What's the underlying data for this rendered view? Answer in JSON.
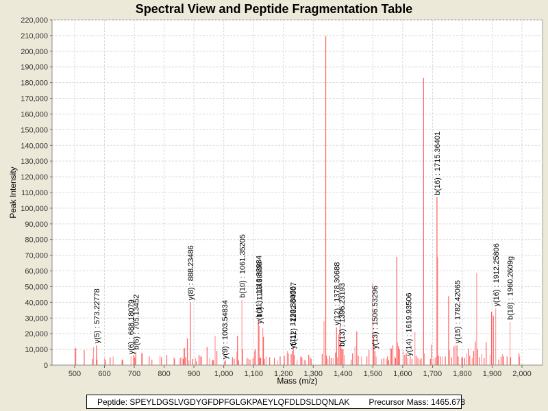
{
  "chart_data": {
    "type": "bar",
    "title": "Spectral View and Peptide Fragmentation Table",
    "xlabel": "Mass (m/z)",
    "ylabel": "Peak Intensity",
    "xlim": [
      425,
      2070
    ],
    "ylim": [
      0,
      220000
    ],
    "grid": true,
    "x_ticks": [
      "500",
      "600",
      "700",
      "800",
      "900",
      "1,000",
      "1,100",
      "1,200",
      "1,300",
      "1,400",
      "1,500",
      "1,600",
      "1,700",
      "1,800",
      "1,900",
      "2,000"
    ],
    "x_tick_values": [
      500,
      600,
      700,
      800,
      900,
      1000,
      1100,
      1200,
      1300,
      1400,
      1500,
      1600,
      1700,
      1800,
      1900,
      2000
    ],
    "y_ticks": [
      "0",
      "10,000",
      "20,000",
      "30,000",
      "40,000",
      "50,000",
      "60,000",
      "70,000",
      "80,000",
      "90,000",
      "100,000",
      "110,000",
      "120,000",
      "130,000",
      "140,000",
      "150,000",
      "160,000",
      "170,000",
      "180,000",
      "190,000",
      "200,000",
      "210,000",
      "220,000"
    ],
    "y_tick_values": [
      0,
      10000,
      20000,
      30000,
      40000,
      50000,
      60000,
      70000,
      80000,
      90000,
      100000,
      110000,
      120000,
      130000,
      140000,
      150000,
      160000,
      170000,
      180000,
      190000,
      200000,
      210000,
      220000
    ],
    "peaks": [
      [
        502,
        11000
      ],
      [
        504,
        10500
      ],
      [
        532,
        9500
      ],
      [
        559,
        4000
      ],
      [
        563,
        11500
      ],
      [
        573,
        12500
      ],
      [
        575,
        3500
      ],
      [
        601,
        4500
      ],
      [
        603,
        3000
      ],
      [
        619,
        5000
      ],
      [
        629,
        5500
      ],
      [
        659,
        3500
      ],
      [
        661,
        3200
      ],
      [
        689,
        5500
      ],
      [
        698,
        6500
      ],
      [
        700,
        5000
      ],
      [
        703,
        4500
      ],
      [
        705,
        8500
      ],
      [
        725,
        7500
      ],
      [
        727,
        8000
      ],
      [
        750,
        5500
      ],
      [
        759,
        3500
      ],
      [
        786,
        6000
      ],
      [
        791,
        5000
      ],
      [
        809,
        6500
      ],
      [
        833,
        5000
      ],
      [
        835,
        4000
      ],
      [
        854,
        4500
      ],
      [
        860,
        5000
      ],
      [
        864,
        4000
      ],
      [
        867,
        10500
      ],
      [
        869,
        11000
      ],
      [
        872,
        5000
      ],
      [
        878,
        17000
      ],
      [
        883,
        3000
      ],
      [
        888,
        40000
      ],
      [
        896,
        4000
      ],
      [
        905,
        4500
      ],
      [
        908,
        2500
      ],
      [
        917,
        6500
      ],
      [
        921,
        5500
      ],
      [
        925,
        5500
      ],
      [
        944,
        11500
      ],
      [
        953,
        4500
      ],
      [
        962,
        3500
      ],
      [
        965,
        3000
      ],
      [
        971,
        18500
      ],
      [
        977,
        9000
      ],
      [
        1003,
        2500
      ],
      [
        1006,
        3500
      ],
      [
        1029,
        5000
      ],
      [
        1035,
        4000
      ],
      [
        1044,
        8500
      ],
      [
        1046,
        18500
      ],
      [
        1050,
        3000
      ],
      [
        1061,
        41500
      ],
      [
        1063,
        10000
      ],
      [
        1078,
        4500
      ],
      [
        1082,
        4000
      ],
      [
        1088,
        3500
      ],
      [
        1098,
        4500
      ],
      [
        1103,
        9000
      ],
      [
        1106,
        10000
      ],
      [
        1116,
        29000
      ],
      [
        1119,
        25000
      ],
      [
        1121,
        5000
      ],
      [
        1124,
        4500
      ],
      [
        1131,
        23500
      ],
      [
        1133,
        18000
      ],
      [
        1136,
        4000
      ],
      [
        1142,
        5500
      ],
      [
        1154,
        5000
      ],
      [
        1170,
        4500
      ],
      [
        1180,
        3000
      ],
      [
        1189,
        5500
      ],
      [
        1203,
        6000
      ],
      [
        1213,
        9000
      ],
      [
        1216,
        7500
      ],
      [
        1226,
        7000
      ],
      [
        1230,
        9000
      ],
      [
        1233,
        11000
      ],
      [
        1236,
        6500
      ],
      [
        1246,
        3000
      ],
      [
        1258,
        5500
      ],
      [
        1262,
        5000
      ],
      [
        1270,
        3500
      ],
      [
        1274,
        3000
      ],
      [
        1285,
        6500
      ],
      [
        1290,
        5000
      ],
      [
        1293,
        4000
      ],
      [
        1330,
        7000
      ],
      [
        1336,
        28000
      ],
      [
        1342,
        209500
      ],
      [
        1344,
        6000
      ],
      [
        1349,
        4000
      ],
      [
        1355,
        6000
      ],
      [
        1360,
        4500
      ],
      [
        1367,
        4500
      ],
      [
        1375,
        8000
      ],
      [
        1378,
        24000
      ],
      [
        1381,
        5000
      ],
      [
        1386,
        19500
      ],
      [
        1390,
        25000
      ],
      [
        1393,
        11500
      ],
      [
        1396,
        10500
      ],
      [
        1400,
        10000
      ],
      [
        1404,
        6500
      ],
      [
        1427,
        3500
      ],
      [
        1432,
        7500
      ],
      [
        1440,
        12000
      ],
      [
        1446,
        21500
      ],
      [
        1451,
        6000
      ],
      [
        1462,
        5500
      ],
      [
        1480,
        5500
      ],
      [
        1487,
        9500
      ],
      [
        1500,
        52500
      ],
      [
        1503,
        18000
      ],
      [
        1507,
        9000
      ],
      [
        1511,
        5500
      ],
      [
        1530,
        4000
      ],
      [
        1537,
        4500
      ],
      [
        1545,
        4000
      ],
      [
        1549,
        5500
      ],
      [
        1553,
        3000
      ],
      [
        1558,
        11000
      ],
      [
        1562,
        10500
      ],
      [
        1567,
        12500
      ],
      [
        1573,
        5500
      ],
      [
        1576,
        4500
      ],
      [
        1580,
        69000
      ],
      [
        1583,
        14500
      ],
      [
        1586,
        12000
      ],
      [
        1589,
        10000
      ],
      [
        1602,
        9500
      ],
      [
        1607,
        6500
      ],
      [
        1612,
        7500
      ],
      [
        1617,
        4500
      ],
      [
        1625,
        6000
      ],
      [
        1631,
        4000
      ],
      [
        1641,
        21000
      ],
      [
        1645,
        6000
      ],
      [
        1651,
        4500
      ],
      [
        1658,
        3500
      ],
      [
        1662,
        4500
      ],
      [
        1670,
        183000
      ],
      [
        1673,
        7500
      ],
      [
        1693,
        4000
      ],
      [
        1697,
        13000
      ],
      [
        1705,
        4500
      ],
      [
        1711,
        5000
      ],
      [
        1715,
        107000
      ],
      [
        1717,
        69000
      ],
      [
        1720,
        6000
      ],
      [
        1726,
        5500
      ],
      [
        1733,
        5500
      ],
      [
        1743,
        5500
      ],
      [
        1754,
        44000
      ],
      [
        1757,
        9500
      ],
      [
        1764,
        5000
      ],
      [
        1772,
        12000
      ],
      [
        1776,
        12500
      ],
      [
        1782,
        12500
      ],
      [
        1786,
        5500
      ],
      [
        1797,
        5000
      ],
      [
        1801,
        5000
      ],
      [
        1808,
        4500
      ],
      [
        1815,
        7500
      ],
      [
        1820,
        10500
      ],
      [
        1825,
        6000
      ],
      [
        1833,
        4500
      ],
      [
        1838,
        9000
      ],
      [
        1843,
        15000
      ],
      [
        1848,
        58500
      ],
      [
        1851,
        10000
      ],
      [
        1857,
        5000
      ],
      [
        1865,
        7000
      ],
      [
        1873,
        4500
      ],
      [
        1880,
        14500
      ],
      [
        1893,
        6500
      ],
      [
        1898,
        34000
      ],
      [
        1904,
        31500
      ],
      [
        1912,
        36000
      ],
      [
        1922,
        3500
      ],
      [
        1930,
        5500
      ],
      [
        1935,
        7000
      ],
      [
        1938,
        5500
      ],
      [
        1950,
        5500
      ],
      [
        1960,
        27500
      ],
      [
        1962,
        5000
      ],
      [
        1990,
        7500
      ],
      [
        1992,
        5500
      ]
    ],
    "annotations": [
      {
        "label": "y(5) : 573.22778",
        "x": 573.22778,
        "y": 12500
      },
      {
        "label": "y(6) : 688.18079",
        "x": 688.18079,
        "y": 5500
      },
      {
        "label": "b(6) : 705.13452",
        "x": 705.13452,
        "y": 8500
      },
      {
        "label": "y(8) : 888.23486",
        "x": 888.23486,
        "y": 40000
      },
      {
        "label": "y(9) : 1003.54834",
        "x": 1003.54834,
        "y": 2500
      },
      {
        "label": "b(10) : 1061.35205",
        "x": 1061.35205,
        "y": 41500
      },
      {
        "label": "b(11) : 1116.33984",
        "x": 1116.33984,
        "y": 29000
      },
      {
        "label": "y(10) : 1119.38590",
        "x": 1119.3859,
        "y": 25000
      },
      {
        "label": "y(11) : 1230.33076",
        "x": 1230.33076,
        "y": 9000
      },
      {
        "label": "b(12) : 1232.64007",
        "x": 1232.64007,
        "y": 11000
      },
      {
        "label": "y(12) : 1378.30688",
        "x": 1378.30688,
        "y": 24000
      },
      {
        "label": "b(13) : 1396.23193",
        "x": 1396.23193,
        "y": 10500
      },
      {
        "label": "y(13) : 1506.53296",
        "x": 1506.53296,
        "y": 9000
      },
      {
        "label": "y(14) : 1619.93506",
        "x": 1619.93506,
        "y": 4500
      },
      {
        "label": "b(16) : 1715.36401",
        "x": 1715.36401,
        "y": 107000
      },
      {
        "label": "y(15) : 1782.42065",
        "x": 1782.42065,
        "y": 12500
      },
      {
        "label": "y(16) : 1912.25806",
        "x": 1912.25806,
        "y": 36000
      },
      {
        "label": "b(18) : 1960.2609g",
        "x": 1960.2609,
        "y": 27500
      }
    ],
    "series_color": "#ff4444"
  },
  "footer": {
    "peptide_label": "Peptide: SPEYLDGSLVGDYGFDPFGLGKPAEYLQFDLDSLDQNLAK",
    "precursor_label": "Precursor Mass: 1465.678"
  }
}
